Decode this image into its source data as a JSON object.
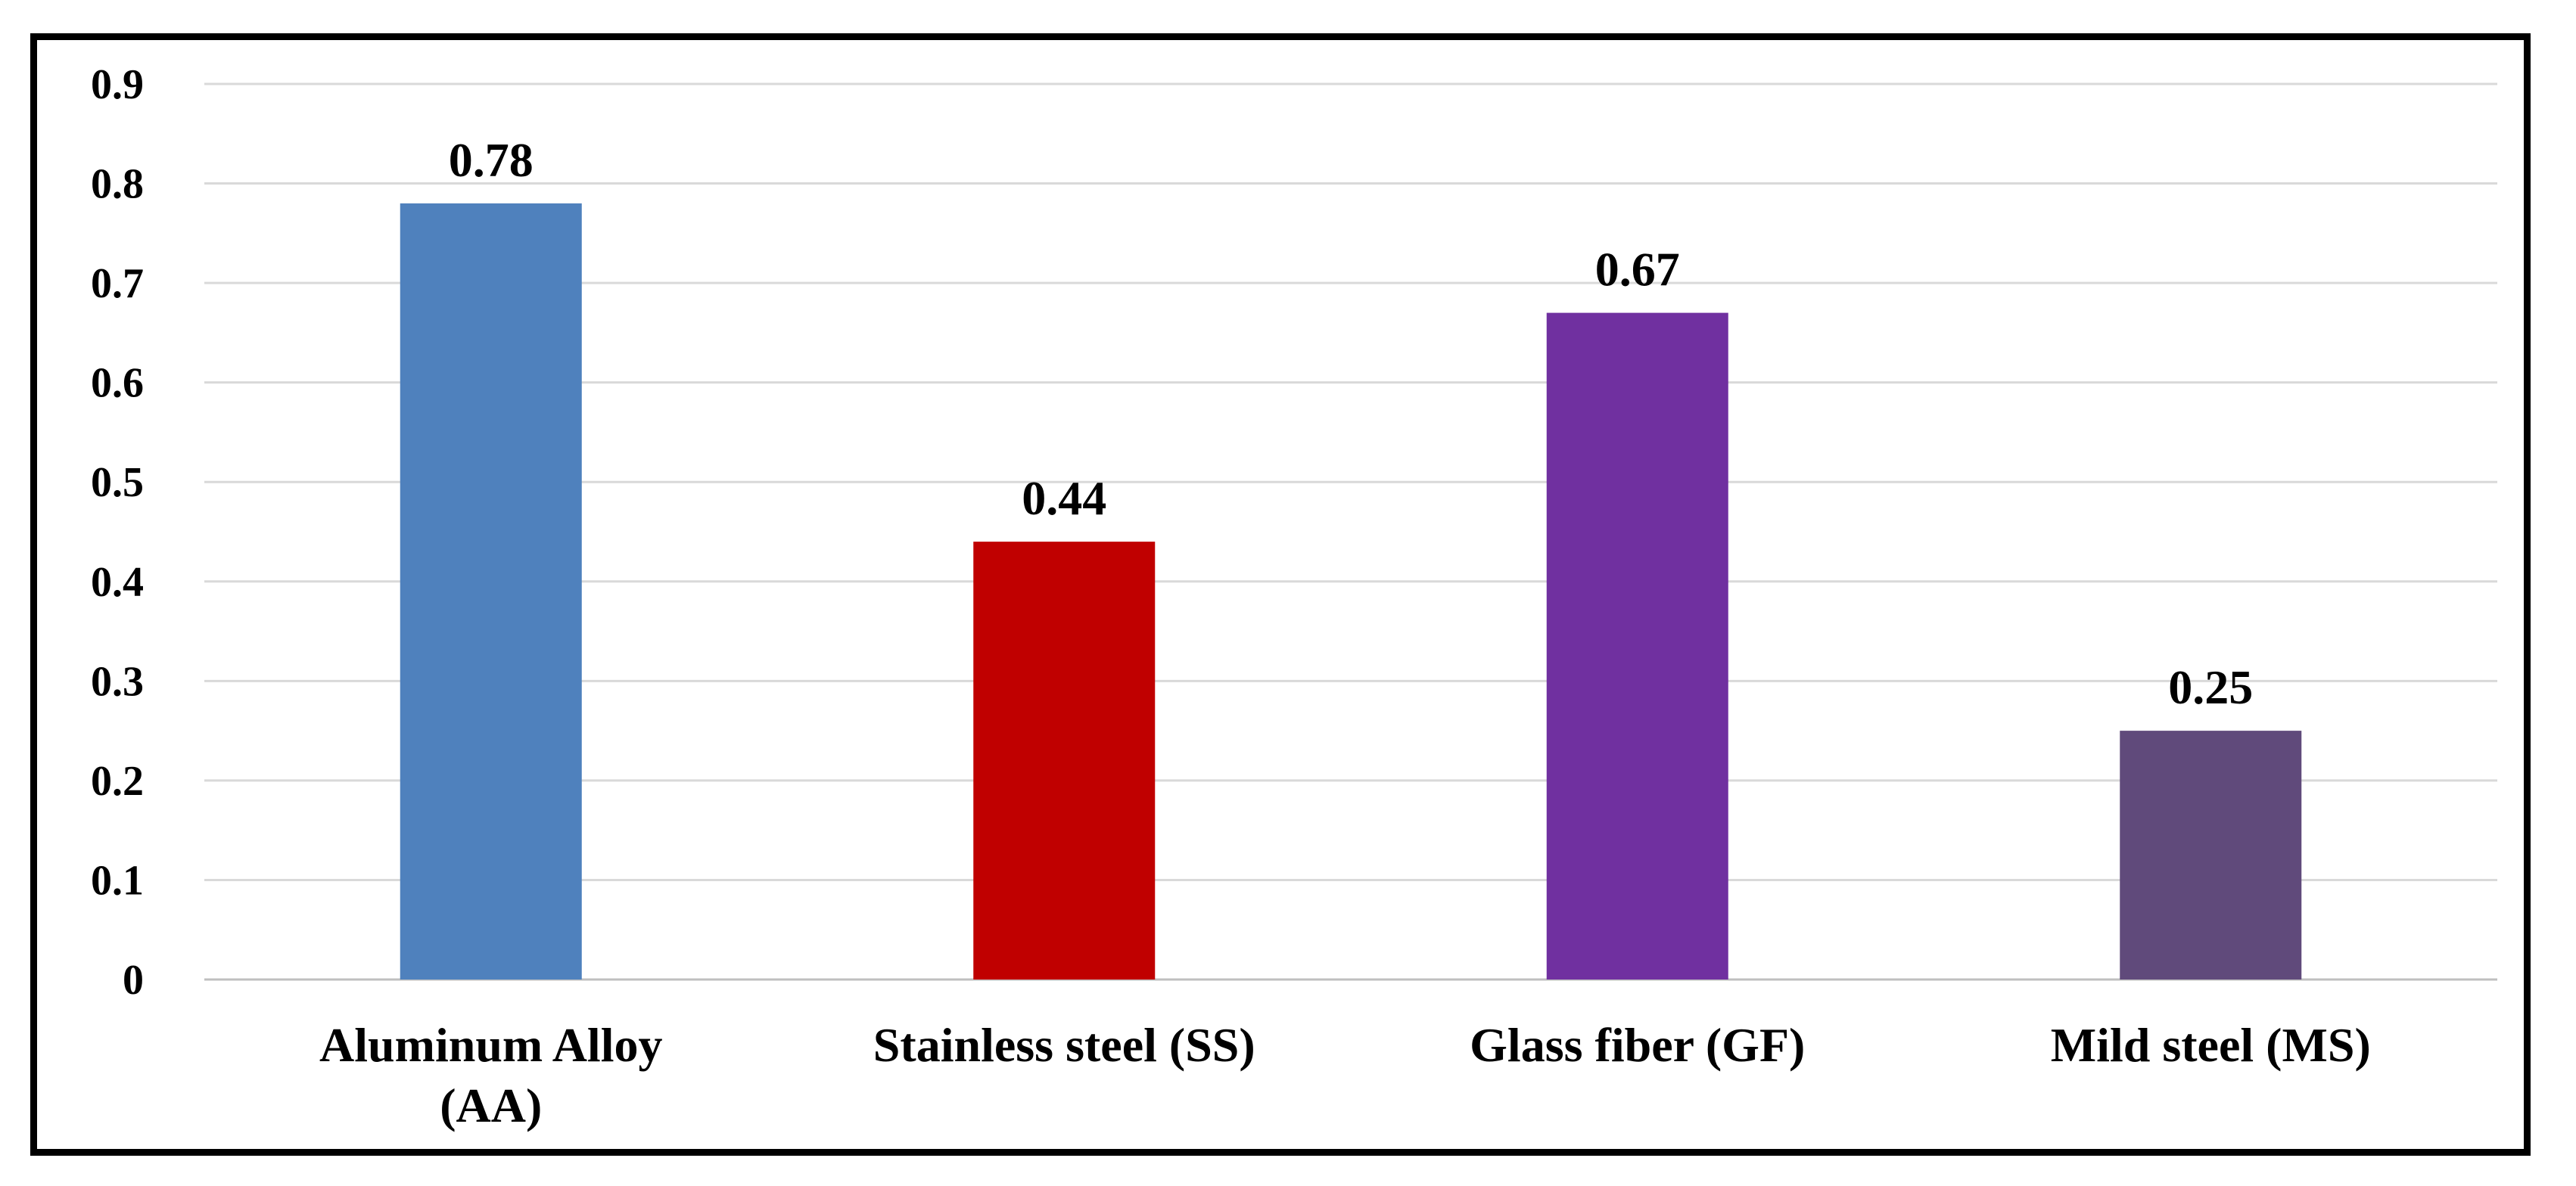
{
  "chart_data": {
    "type": "bar",
    "title": "",
    "xlabel": "",
    "ylabel": "",
    "categories": [
      "Aluminum Alloy (AA)",
      "Stainless steel (SS)",
      "Glass fiber (GF)",
      "Mild steel (MS)"
    ],
    "category_lines": [
      [
        "Aluminum Alloy",
        "(AA)"
      ],
      [
        "Stainless steel (SS)"
      ],
      [
        "Glass fiber (GF)"
      ],
      [
        "Mild steel (MS)"
      ]
    ],
    "values": [
      0.78,
      0.44,
      0.67,
      0.25
    ],
    "data_labels": [
      "0.78",
      "0.44",
      "0.67",
      "0.25"
    ],
    "colors": [
      "#4f81bd",
      "#c00000",
      "#7030a0",
      "#604a7b"
    ],
    "ylim": [
      0,
      0.9
    ],
    "yticks": [
      0,
      0.1,
      0.2,
      0.3,
      0.4,
      0.5,
      0.6,
      0.7,
      0.8,
      0.9
    ],
    "ytick_labels": [
      "0",
      "0.1",
      "0.2",
      "0.3",
      "0.4",
      "0.5",
      "0.6",
      "0.7",
      "0.8",
      "0.9"
    ],
    "grid": true,
    "legend": "none"
  }
}
